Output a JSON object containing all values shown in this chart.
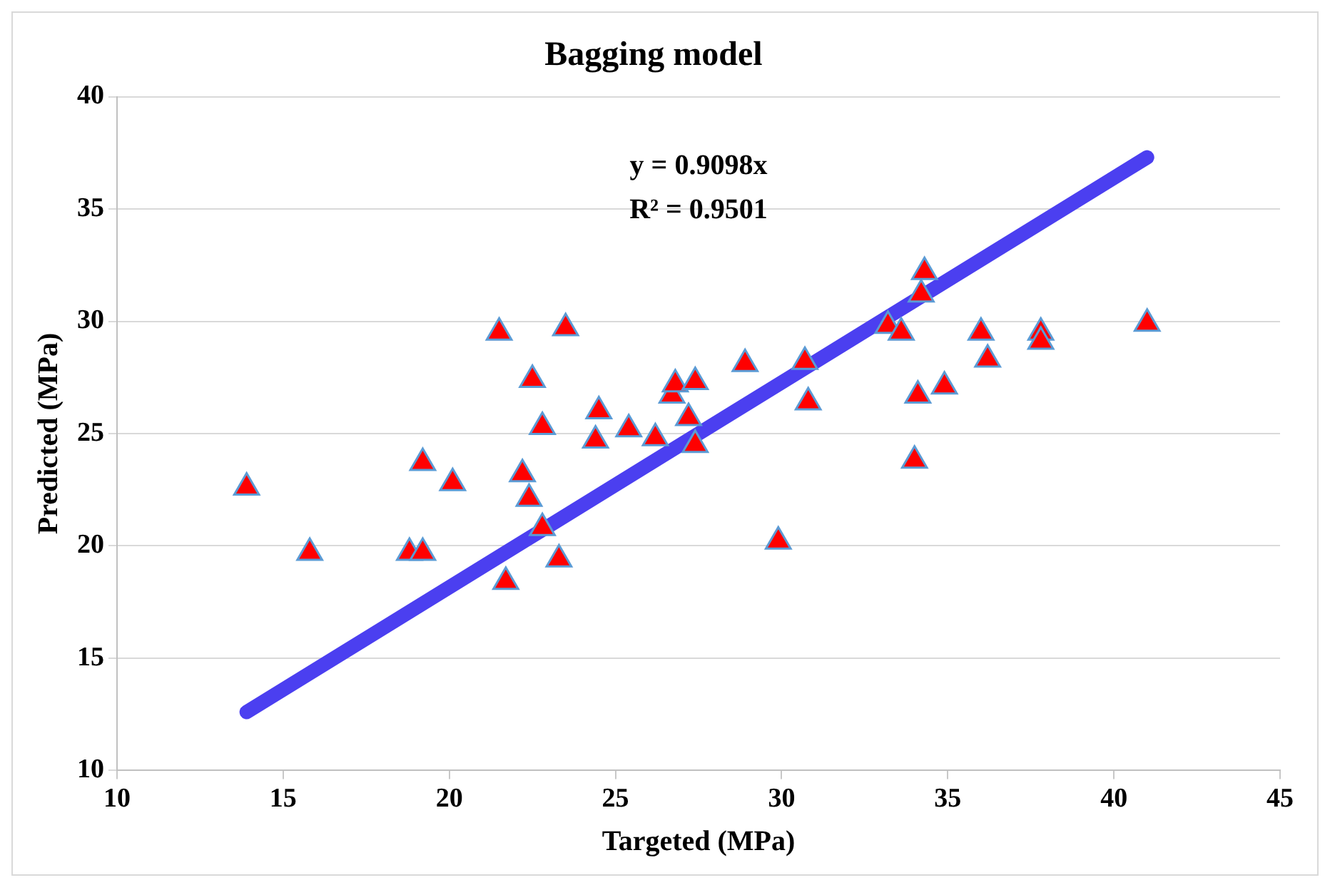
{
  "chart_data": {
    "type": "scatter",
    "title": "Bagging model",
    "xlabel": "Targeted (MPa)",
    "ylabel": "Predicted (MPa)",
    "xlim": [
      10,
      45
    ],
    "xticks": [
      10,
      15,
      20,
      25,
      30,
      35,
      40,
      45
    ],
    "ylim": [
      10,
      40
    ],
    "yticks": [
      10,
      15,
      20,
      25,
      30,
      35,
      40
    ],
    "grid": "y",
    "legend": false,
    "marker": "triangle",
    "annotations": [
      "y = 0.9098x",
      "R² = 0.9501"
    ],
    "series": [
      {
        "color": "#ff0000",
        "x": [
          13.9,
          15.8,
          18.8,
          19.2,
          19.2,
          20.1,
          21.5,
          21.7,
          22.2,
          22.4,
          22.5,
          22.8,
          22.8,
          23.3,
          23.5,
          24.4,
          24.5,
          25.4,
          26.2,
          26.7,
          26.8,
          27.2,
          27.4,
          27.4,
          28.9,
          29.9,
          30.7,
          30.8,
          33.2,
          33.6,
          34.0,
          34.1,
          34.2,
          34.3,
          34.9,
          36.0,
          36.2,
          37.8,
          37.8,
          41.0
        ],
        "values": [
          22.6,
          19.7,
          19.7,
          19.7,
          23.7,
          22.8,
          29.5,
          18.4,
          23.2,
          22.1,
          27.4,
          20.8,
          25.3,
          19.4,
          29.7,
          24.7,
          26.0,
          25.2,
          24.8,
          26.7,
          27.2,
          25.7,
          24.5,
          27.3,
          28.1,
          20.2,
          28.2,
          26.4,
          29.8,
          29.5,
          23.8,
          26.7,
          31.2,
          32.2,
          27.1,
          29.5,
          28.3,
          29.5,
          29.1,
          29.9
        ]
      },
      {
        "type": "line",
        "color": "#4b3ff0",
        "marker": "none",
        "x": [
          13.9,
          41.0
        ],
        "values": [
          12.6,
          37.3
        ]
      }
    ]
  }
}
